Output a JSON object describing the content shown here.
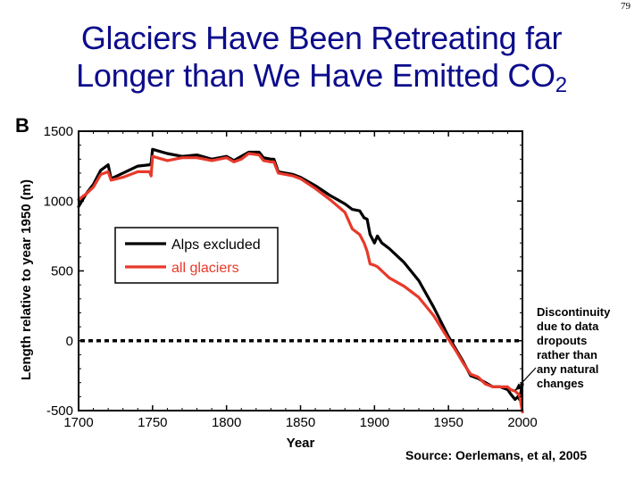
{
  "slide_number": "79",
  "title": {
    "line1": "Glaciers Have Been Retreating far",
    "line2_main": "Longer than We Have Emitted CO",
    "line2_sub": "2"
  },
  "panel_label": "B",
  "annotation": [
    "Discontinuity",
    "due to data",
    "dropouts",
    "rather than",
    "any natural",
    "changes"
  ],
  "source": "Source:  Oerlemans, et al, 2005",
  "colors": {
    "title": "#0c0c8c",
    "alps_excluded": "#000000",
    "all_glaciers": "#e8392a"
  },
  "chart_data": {
    "type": "line",
    "title": "",
    "xlabel": "Year",
    "ylabel": "Length relative to year 1950 (m)",
    "xlim": [
      1700,
      2000
    ],
    "ylim": [
      -500,
      1500
    ],
    "xticks": [
      1700,
      1750,
      1800,
      1850,
      1900,
      1950,
      2000
    ],
    "yticks": [
      -500,
      0,
      500,
      1000,
      1500
    ],
    "grid": false,
    "legend_placement": "center-left",
    "reference_line": {
      "y": 0,
      "style": "dotted"
    },
    "series": [
      {
        "name": "Alps excluded",
        "color": "#000000",
        "points": [
          [
            1700,
            960
          ],
          [
            1705,
            1050
          ],
          [
            1710,
            1120
          ],
          [
            1715,
            1220
          ],
          [
            1720,
            1260
          ],
          [
            1722,
            1160
          ],
          [
            1730,
            1200
          ],
          [
            1740,
            1250
          ],
          [
            1748,
            1260
          ],
          [
            1749,
            1270
          ],
          [
            1750,
            1370
          ],
          [
            1760,
            1340
          ],
          [
            1770,
            1320
          ],
          [
            1780,
            1330
          ],
          [
            1790,
            1300
          ],
          [
            1800,
            1320
          ],
          [
            1805,
            1290
          ],
          [
            1810,
            1320
          ],
          [
            1815,
            1350
          ],
          [
            1822,
            1350
          ],
          [
            1825,
            1310
          ],
          [
            1830,
            1300
          ],
          [
            1832,
            1300
          ],
          [
            1835,
            1210
          ],
          [
            1845,
            1190
          ],
          [
            1850,
            1170
          ],
          [
            1860,
            1110
          ],
          [
            1870,
            1040
          ],
          [
            1880,
            980
          ],
          [
            1885,
            940
          ],
          [
            1890,
            930
          ],
          [
            1893,
            880
          ],
          [
            1895,
            870
          ],
          [
            1897,
            760
          ],
          [
            1900,
            700
          ],
          [
            1902,
            750
          ],
          [
            1905,
            700
          ],
          [
            1910,
            660
          ],
          [
            1920,
            560
          ],
          [
            1930,
            430
          ],
          [
            1940,
            240
          ],
          [
            1950,
            30
          ],
          [
            1955,
            -60
          ],
          [
            1960,
            -150
          ],
          [
            1965,
            -250
          ],
          [
            1970,
            -270
          ],
          [
            1975,
            -300
          ],
          [
            1980,
            -330
          ],
          [
            1985,
            -330
          ],
          [
            1990,
            -350
          ],
          [
            1992,
            -380
          ],
          [
            1995,
            -420
          ],
          [
            1997,
            -400
          ],
          [
            1998,
            -420
          ],
          [
            2000,
            -310
          ]
        ]
      },
      {
        "name": "all glaciers",
        "color": "#e8392a",
        "points": [
          [
            1700,
            1010
          ],
          [
            1705,
            1050
          ],
          [
            1710,
            1100
          ],
          [
            1715,
            1190
          ],
          [
            1720,
            1210
          ],
          [
            1722,
            1150
          ],
          [
            1730,
            1170
          ],
          [
            1740,
            1210
          ],
          [
            1748,
            1210
          ],
          [
            1749,
            1180
          ],
          [
            1750,
            1320
          ],
          [
            1760,
            1290
          ],
          [
            1770,
            1310
          ],
          [
            1780,
            1310
          ],
          [
            1790,
            1290
          ],
          [
            1800,
            1310
          ],
          [
            1805,
            1280
          ],
          [
            1810,
            1300
          ],
          [
            1815,
            1340
          ],
          [
            1822,
            1330
          ],
          [
            1825,
            1290
          ],
          [
            1830,
            1280
          ],
          [
            1832,
            1280
          ],
          [
            1835,
            1200
          ],
          [
            1845,
            1180
          ],
          [
            1850,
            1160
          ],
          [
            1860,
            1090
          ],
          [
            1870,
            1010
          ],
          [
            1880,
            920
          ],
          [
            1885,
            800
          ],
          [
            1890,
            760
          ],
          [
            1893,
            700
          ],
          [
            1895,
            640
          ],
          [
            1897,
            550
          ],
          [
            1900,
            540
          ],
          [
            1902,
            530
          ],
          [
            1905,
            500
          ],
          [
            1910,
            450
          ],
          [
            1920,
            390
          ],
          [
            1930,
            310
          ],
          [
            1940,
            180
          ],
          [
            1950,
            10
          ],
          [
            1955,
            -70
          ],
          [
            1960,
            -160
          ],
          [
            1965,
            -240
          ],
          [
            1970,
            -260
          ],
          [
            1975,
            -310
          ],
          [
            1980,
            -330
          ],
          [
            1985,
            -330
          ],
          [
            1990,
            -330
          ],
          [
            1992,
            -350
          ],
          [
            1995,
            -360
          ],
          [
            1997,
            -380
          ],
          [
            1998,
            -390
          ],
          [
            2000,
            -510
          ]
        ]
      }
    ]
  }
}
